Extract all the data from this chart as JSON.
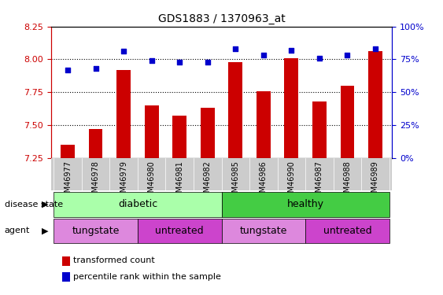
{
  "title": "GDS1883 / 1370963_at",
  "samples": [
    "GSM46977",
    "GSM46978",
    "GSM46979",
    "GSM46980",
    "GSM46981",
    "GSM46982",
    "GSM46985",
    "GSM46986",
    "GSM46990",
    "GSM46987",
    "GSM46988",
    "GSM46989"
  ],
  "bar_values": [
    7.35,
    7.47,
    7.92,
    7.65,
    7.57,
    7.63,
    7.98,
    7.76,
    8.01,
    7.68,
    7.8,
    8.06
  ],
  "dot_values": [
    67,
    68,
    81,
    74,
    73,
    73,
    83,
    78,
    82,
    76,
    78,
    83
  ],
  "ylim_left": [
    7.25,
    8.25
  ],
  "ylim_right": [
    0,
    100
  ],
  "yticks_left": [
    7.25,
    7.5,
    7.75,
    8.0,
    8.25
  ],
  "yticks_right": [
    0,
    25,
    50,
    75,
    100
  ],
  "ytick_labels_right": [
    "0%",
    "25%",
    "50%",
    "75%",
    "100%"
  ],
  "bar_color": "#cc0000",
  "dot_color": "#0000cc",
  "dot_size": 22,
  "bar_width": 0.5,
  "grid_yticks": [
    7.5,
    7.75,
    8.0
  ],
  "grid_color": "black",
  "grid_linestyle": "dotted",
  "grid_linewidth": 0.8,
  "disease_state_labels": [
    "diabetic",
    "healthy"
  ],
  "disease_state_color_diabetic": "#aaffaa",
  "disease_state_color_healthy": "#44cc44",
  "agent_labels": [
    "tungstate",
    "untreated",
    "tungstate",
    "untreated"
  ],
  "agent_color_light": "#dd88dd",
  "agent_color_dark": "#cc44cc",
  "tick_area_color": "#cccccc",
  "left_label_color": "#cc0000",
  "right_label_color": "#0000cc",
  "legend_bar_label": "transformed count",
  "legend_dot_label": "percentile rank within the sample",
  "disease_state_row_label": "disease state",
  "agent_row_label": "agent"
}
